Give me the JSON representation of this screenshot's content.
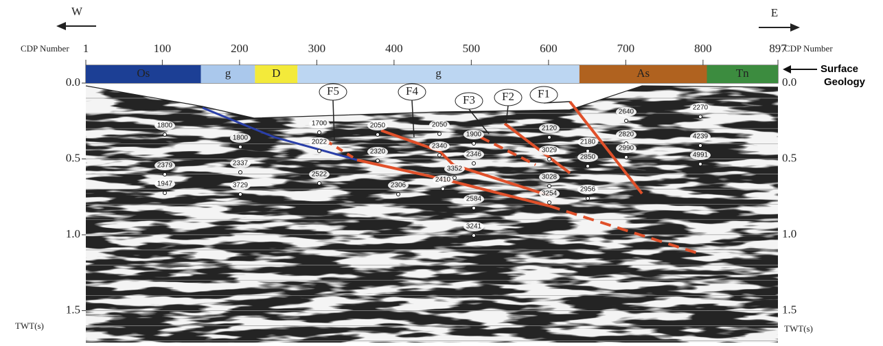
{
  "direction": {
    "west": "W",
    "east": "E"
  },
  "cdp_axis": {
    "label": "CDP Number",
    "range": [
      1,
      897
    ],
    "ticks": [
      1,
      100,
      200,
      300,
      400,
      500,
      600,
      700,
      800,
      897
    ]
  },
  "time_axis": {
    "label": "TWT(s)",
    "ticks": [
      {
        "value": 0,
        "label": "0.0"
      },
      {
        "value": 0.5,
        "label": "0.5"
      },
      {
        "value": 1,
        "label": "1.0"
      },
      {
        "value": 1.5,
        "label": "1.5"
      }
    ]
  },
  "geology": {
    "label_lines": [
      "Surface",
      "Geology"
    ],
    "units": [
      {
        "label": "Os",
        "from": 1,
        "to": 150,
        "color": "#1c3f95"
      },
      {
        "label": "g",
        "from": 150,
        "to": 220,
        "color": "#aac8ec"
      },
      {
        "label": "D",
        "from": 220,
        "to": 275,
        "color": "#f3ea3a"
      },
      {
        "label": "g",
        "from": 275,
        "to": 640,
        "color": "#bcd6f2"
      },
      {
        "label": "As",
        "from": 640,
        "to": 805,
        "color": "#b0621f"
      },
      {
        "label": "Tn",
        "from": 805,
        "to": 897,
        "color": "#3c8c3f"
      }
    ]
  },
  "faults": [
    "F1",
    "F2",
    "F3",
    "F4",
    "F5"
  ],
  "velocities": [
    "1800",
    "1800",
    "2379",
    "1947",
    "2337",
    "3729",
    "1700",
    "2022",
    "2522",
    "2050",
    "2320",
    "2306",
    "2050",
    "2340",
    "3352",
    "2410",
    "2584",
    "3241",
    "1900",
    "2346",
    "2120",
    "3029",
    "3028",
    "3254",
    "2640",
    "2820",
    "2990",
    "2956",
    "2180",
    "2850",
    "2270",
    "4239",
    "4991"
  ]
}
